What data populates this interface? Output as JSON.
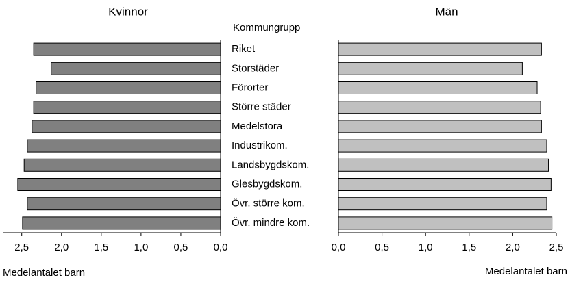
{
  "chart_data": [
    {
      "type": "bar",
      "orientation": "horizontal",
      "title": "Kvinnor",
      "ylabel": "Kommungrupp",
      "xlabel": "Medelantalet barn",
      "categories": [
        "Riket",
        "Storstäder",
        "Förorter",
        "Större städer",
        "Medelstora",
        "Industrikom.",
        "Landsbygdskom.",
        "Glesbygdskom.",
        "Övr. större kom.",
        "Övr. mindre kom."
      ],
      "values": [
        2.35,
        2.13,
        2.32,
        2.35,
        2.37,
        2.43,
        2.47,
        2.55,
        2.43,
        2.49
      ],
      "color": "#808080",
      "reversed": true,
      "xlim": [
        0,
        2.73
      ],
      "xticks": [
        {
          "value": 0,
          "label": "0,0"
        },
        {
          "value": 0.5,
          "label": "0,5"
        },
        {
          "value": 1,
          "label": "1,0"
        },
        {
          "value": 1.5,
          "label": "1,5"
        },
        {
          "value": 2,
          "label": "2,0"
        },
        {
          "value": 2.5,
          "label": "2,5"
        }
      ]
    },
    {
      "type": "bar",
      "orientation": "horizontal",
      "title": "Män",
      "xlabel": "Medelantalet barn",
      "values": [
        2.33,
        2.11,
        2.28,
        2.32,
        2.33,
        2.39,
        2.41,
        2.44,
        2.39,
        2.45
      ],
      "color": "#c0c0c0",
      "reversed": false,
      "xlim": [
        0,
        2.5
      ],
      "xticks": [
        {
          "value": 0,
          "label": "0,0"
        },
        {
          "value": 0.5,
          "label": "0,5"
        },
        {
          "value": 1,
          "label": "1,0"
        },
        {
          "value": 1.5,
          "label": "1,5"
        },
        {
          "value": 2,
          "label": "2,0"
        },
        {
          "value": 2.5,
          "label": "2,5"
        }
      ]
    }
  ]
}
